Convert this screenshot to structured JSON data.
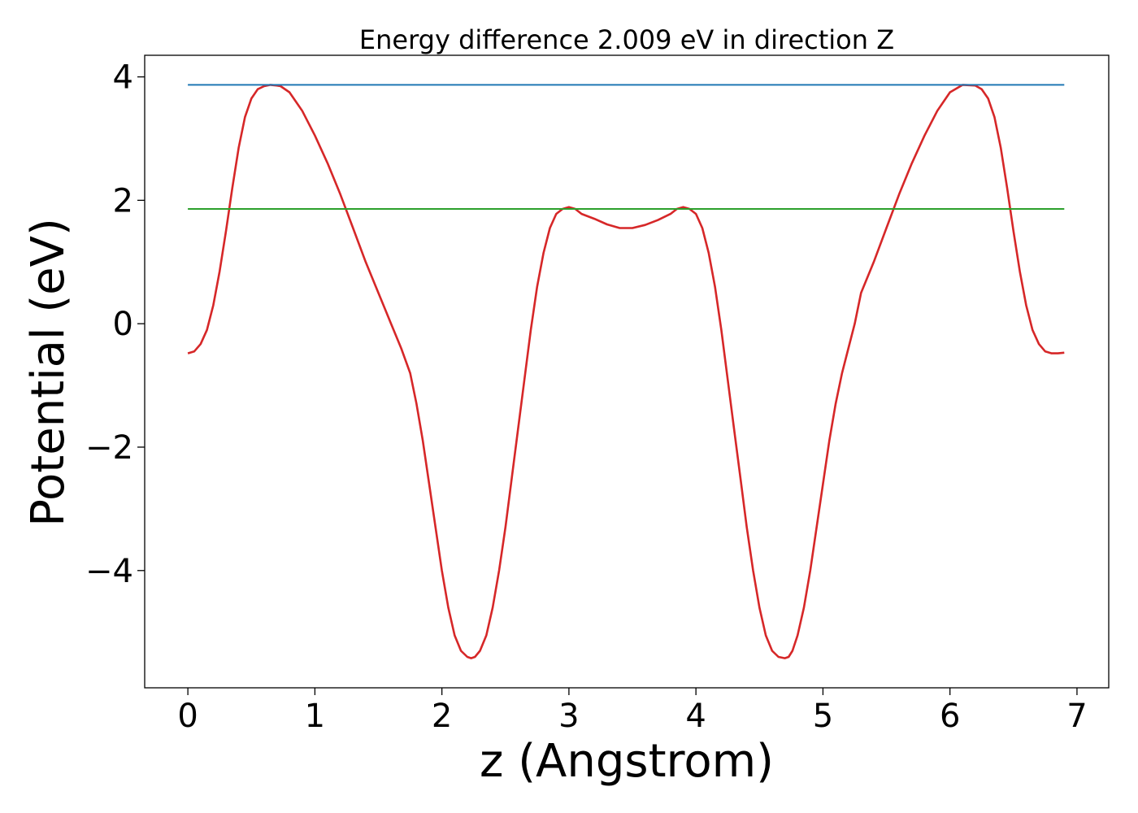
{
  "chart_data": {
    "type": "line",
    "title": "Energy difference 2.009 eV in direction Z",
    "xlabel": "z (Angstrom)",
    "ylabel": "Potential (eV)",
    "xlim": [
      -0.34,
      7.25
    ],
    "ylim": [
      -5.9,
      4.35
    ],
    "x_ticks": [
      0,
      1,
      2,
      3,
      4,
      5,
      6,
      7
    ],
    "y_ticks": [
      -4,
      -2,
      0,
      2,
      4
    ],
    "x_tick_labels": [
      "0",
      "1",
      "2",
      "3",
      "4",
      "5",
      "6",
      "7"
    ],
    "y_tick_labels": [
      "−4",
      "−2",
      "0",
      "2",
      "4"
    ],
    "grid": false,
    "series": [
      {
        "color": "#d62728",
        "x": [
          0.0,
          0.05,
          0.1,
          0.15,
          0.2,
          0.25,
          0.3,
          0.35,
          0.4,
          0.45,
          0.5,
          0.55,
          0.6,
          0.65,
          0.7,
          0.73,
          0.8,
          0.9,
          1.0,
          1.1,
          1.2,
          1.3,
          1.4,
          1.5,
          1.6,
          1.68,
          1.75,
          1.8,
          1.85,
          1.9,
          1.95,
          2.0,
          2.05,
          2.1,
          2.15,
          2.2,
          2.23,
          2.26,
          2.3,
          2.35,
          2.4,
          2.45,
          2.5,
          2.55,
          2.6,
          2.65,
          2.7,
          2.75,
          2.8,
          2.85,
          2.9,
          2.95,
          3.0,
          3.05,
          3.1,
          3.2,
          3.3,
          3.4,
          3.5,
          3.6,
          3.7,
          3.8,
          3.85,
          3.9,
          3.95,
          4.0,
          4.05,
          4.1,
          4.15,
          4.2,
          4.25,
          4.3,
          4.35,
          4.4,
          4.45,
          4.5,
          4.55,
          4.6,
          4.65,
          4.7,
          4.73,
          4.76,
          4.8,
          4.85,
          4.9,
          4.95,
          5.0,
          5.05,
          5.1,
          5.15,
          5.2,
          5.25,
          5.3,
          5.4,
          5.5,
          5.6,
          5.7,
          5.8,
          5.9,
          6.0,
          6.1,
          6.2,
          6.25,
          6.3,
          6.35,
          6.4,
          6.45,
          6.5,
          6.55,
          6.6,
          6.65,
          6.7,
          6.75,
          6.8,
          6.85,
          6.9
        ],
        "y": [
          -0.48,
          -0.45,
          -0.33,
          -0.1,
          0.3,
          0.85,
          1.5,
          2.2,
          2.85,
          3.35,
          3.65,
          3.8,
          3.85,
          3.87,
          3.86,
          3.85,
          3.75,
          3.45,
          3.05,
          2.6,
          2.1,
          1.55,
          1.0,
          0.5,
          0.0,
          -0.4,
          -0.8,
          -1.3,
          -1.9,
          -2.6,
          -3.3,
          -4.0,
          -4.6,
          -5.05,
          -5.3,
          -5.4,
          -5.42,
          -5.4,
          -5.3,
          -5.05,
          -4.6,
          -4.0,
          -3.3,
          -2.5,
          -1.7,
          -0.9,
          -0.1,
          0.6,
          1.15,
          1.55,
          1.78,
          1.86,
          1.89,
          1.86,
          1.78,
          1.7,
          1.61,
          1.55,
          1.55,
          1.6,
          1.68,
          1.78,
          1.86,
          1.89,
          1.86,
          1.78,
          1.55,
          1.15,
          0.6,
          -0.1,
          -0.9,
          -1.7,
          -2.5,
          -3.3,
          -4.0,
          -4.6,
          -5.05,
          -5.3,
          -5.4,
          -5.42,
          -5.4,
          -5.3,
          -5.05,
          -4.6,
          -4.0,
          -3.3,
          -2.6,
          -1.9,
          -1.3,
          -0.8,
          -0.4,
          0.0,
          0.5,
          1.0,
          1.55,
          2.1,
          2.6,
          3.05,
          3.45,
          3.75,
          3.87,
          3.86,
          3.8,
          3.65,
          3.35,
          2.85,
          2.2,
          1.5,
          0.85,
          0.3,
          -0.1,
          -0.33,
          -0.45,
          -0.48,
          -0.48,
          -0.47
        ]
      },
      {
        "color": "#1f77b4",
        "x": [
          0.0,
          6.9
        ],
        "y": [
          3.87,
          3.87
        ]
      },
      {
        "color": "#2ca02c",
        "x": [
          0.0,
          6.9
        ],
        "y": [
          1.86,
          1.86
        ]
      }
    ]
  }
}
